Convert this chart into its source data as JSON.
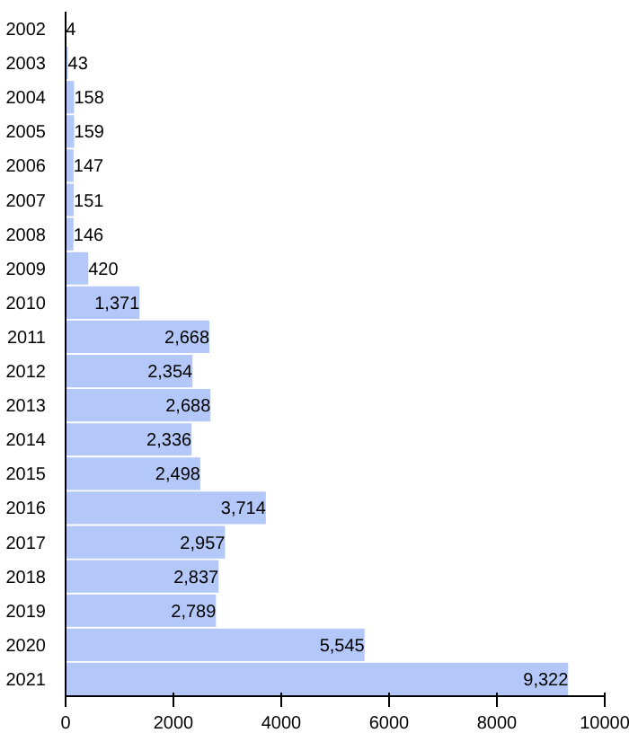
{
  "chart_data": {
    "type": "bar",
    "orientation": "horizontal",
    "categories": [
      "2002",
      "2003",
      "2004",
      "2005",
      "2006",
      "2007",
      "2008",
      "2009",
      "2010",
      "2011",
      "2012",
      "2013",
      "2014",
      "2015",
      "2016",
      "2017",
      "2018",
      "2019",
      "2020",
      "2021"
    ],
    "values": [
      4,
      43,
      158,
      159,
      147,
      151,
      146,
      420,
      1371,
      2668,
      2354,
      2688,
      2336,
      2498,
      3714,
      2957,
      2837,
      2789,
      5545,
      9322
    ],
    "value_labels": [
      "4",
      "43",
      "158",
      "159",
      "147",
      "151",
      "146",
      "420",
      "1,371",
      "2,668",
      "2,354",
      "2,688",
      "2,336",
      "2,498",
      "3,714",
      "2,957",
      "2,837",
      "2,789",
      "5,545",
      "9,322"
    ],
    "color": "#b3c8f8",
    "xlim": [
      0,
      10000
    ],
    "xticks": [
      0,
      2000,
      4000,
      6000,
      8000,
      10000
    ],
    "grid": false
  }
}
